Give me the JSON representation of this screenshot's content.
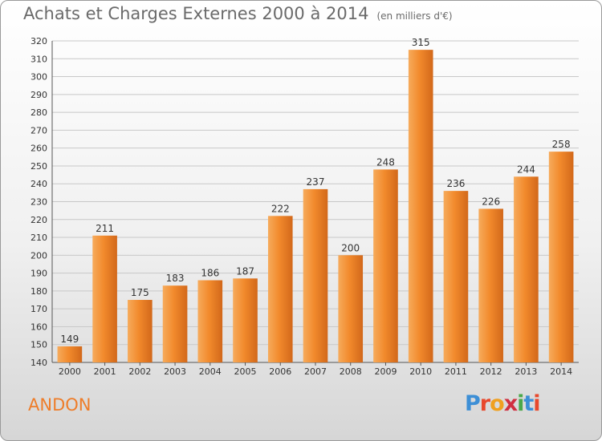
{
  "title": "Achats et Charges Externes 2000 à 2014",
  "subtitle": "(en milliers d'€)",
  "commune": "ANDON",
  "logo": {
    "letters": [
      "P",
      "r",
      "o",
      "x",
      "i",
      "t",
      "i"
    ],
    "colors": [
      "#3d8fd6",
      "#e8482c",
      "#f0a020",
      "#d03040",
      "#4aa84a",
      "#3d8fd6",
      "#e8482c"
    ]
  },
  "colors": {
    "bar": "#f28a2c",
    "bar_light": "#f6ab5c",
    "bar_dark": "#d2681a",
    "commune": "#ee7d2a",
    "grid": "#c8c8c8"
  },
  "chart_data": {
    "type": "bar",
    "title": "Achats et Charges Externes 2000 à 2014",
    "subtitle": "(en milliers d'€)",
    "categories": [
      "2000",
      "2001",
      "2002",
      "2003",
      "2004",
      "2005",
      "2006",
      "2007",
      "2008",
      "2009",
      "2010",
      "2011",
      "2012",
      "2013",
      "2014"
    ],
    "values": [
      149,
      211,
      175,
      183,
      186,
      187,
      222,
      237,
      200,
      248,
      315,
      236,
      226,
      244,
      258
    ],
    "ylim": [
      140,
      320
    ],
    "yticks": [
      140,
      150,
      160,
      170,
      180,
      190,
      200,
      210,
      220,
      230,
      240,
      250,
      260,
      270,
      280,
      290,
      300,
      310,
      320
    ],
    "grid": true,
    "xlabel": "",
    "ylabel": ""
  }
}
